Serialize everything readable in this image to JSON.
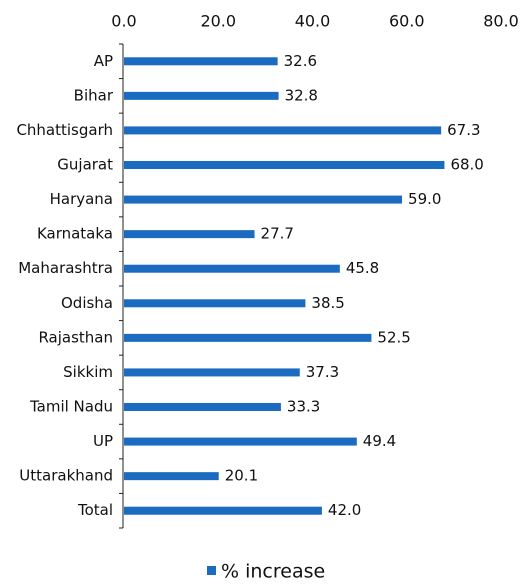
{
  "chart_data": {
    "type": "barh",
    "categories": [
      "AP",
      "Bihar",
      "Chhattisgarh",
      "Gujarat",
      "Haryana",
      "Karnataka",
      "Maharashtra",
      "Odisha",
      "Rajasthan",
      "Sikkim",
      "Tamil Nadu",
      "UP",
      "Uttarakhand",
      "Total"
    ],
    "series": [
      {
        "name": "% increase",
        "color": "#1b6bc0",
        "values": [
          32.6,
          32.8,
          67.3,
          68.0,
          59.0,
          27.7,
          45.8,
          38.5,
          52.5,
          37.3,
          33.3,
          49.4,
          20.1,
          42.0
        ],
        "value_labels": [
          "32.6",
          "32.8",
          "67.3",
          "68.0",
          "59.0",
          "27.7",
          "45.8",
          "38.5",
          "52.5",
          "37.3",
          "33.3",
          "49.4",
          "20.1",
          "42.0"
        ]
      }
    ],
    "xlim": [
      0,
      80
    ],
    "xticks": [
      {
        "value": 0,
        "label": "0.0"
      },
      {
        "value": 20,
        "label": "20.0"
      },
      {
        "value": 40,
        "label": "40.0"
      },
      {
        "value": 60,
        "label": "60.0"
      },
      {
        "value": 80,
        "label": "80.0"
      }
    ],
    "legend": "bottom"
  }
}
